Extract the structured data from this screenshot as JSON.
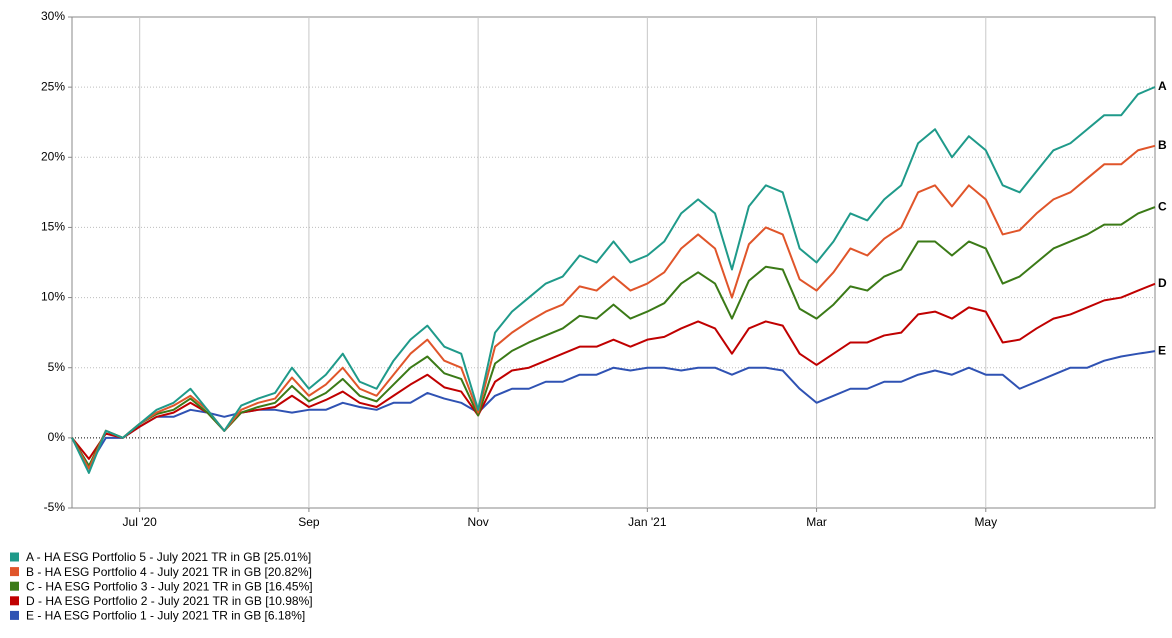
{
  "chart_data": {
    "type": "line",
    "categories": [
      null,
      null,
      null,
      null,
      "Jul '20",
      null,
      null,
      null,
      null,
      null,
      null,
      null,
      null,
      null,
      "Sep",
      null,
      null,
      null,
      null,
      null,
      null,
      null,
      null,
      null,
      "Nov",
      null,
      null,
      null,
      null,
      null,
      null,
      null,
      null,
      null,
      "Jan '21",
      null,
      null,
      null,
      null,
      null,
      null,
      null,
      null,
      null,
      "Mar",
      null,
      null,
      null,
      null,
      null,
      null,
      null,
      null,
      null,
      "May",
      null,
      null,
      null,
      null,
      null,
      null,
      null,
      null,
      null,
      null
    ],
    "ylim": [
      -5,
      30
    ],
    "yticks": [
      {
        "value": -5,
        "label": "-5%"
      },
      {
        "value": 0,
        "label": "0%"
      },
      {
        "value": 5,
        "label": "5%"
      },
      {
        "value": 10,
        "label": "10%"
      },
      {
        "value": 15,
        "label": "15%"
      },
      {
        "value": 20,
        "label": "20%"
      },
      {
        "value": 25,
        "label": "25%"
      },
      {
        "value": 30,
        "label": "30%"
      }
    ],
    "grid": true,
    "legend": "bottom-left",
    "series": [
      {
        "name": "A - HA ESG Portfolio 5 - July 2021 TR in GB [25.01%]",
        "end_label": "A",
        "color": "#1f9a8a",
        "values": [
          0,
          -2.5,
          0.5,
          0,
          1,
          2,
          2.5,
          3.5,
          2,
          0.5,
          2.3,
          2.8,
          3.2,
          5,
          3.5,
          4.5,
          6,
          4,
          3.5,
          5.5,
          7,
          8,
          6.5,
          6,
          2,
          7.5,
          9,
          10,
          11,
          11.5,
          13,
          12.5,
          14,
          12.5,
          13,
          14,
          16,
          17,
          16,
          12,
          16.5,
          18,
          17.5,
          13.5,
          12.5,
          14,
          16,
          15.5,
          17,
          18,
          21,
          22,
          20,
          21.5,
          20.5,
          18,
          17.5,
          19,
          20.5,
          21,
          22,
          23,
          23,
          24.5,
          25.01
        ]
      },
      {
        "name": "B - HA ESG Portfolio 4 - July 2021 TR in GB [20.82%]",
        "end_label": "B",
        "color": "#e0552a",
        "values": [
          0,
          -2.2,
          0.5,
          0,
          1,
          1.8,
          2.3,
          3,
          2,
          0.5,
          2,
          2.5,
          2.8,
          4.3,
          3,
          3.8,
          5,
          3.5,
          3,
          4.5,
          6,
          7,
          5.5,
          5,
          1.8,
          6.5,
          7.5,
          8.3,
          9,
          9.5,
          10.8,
          10.5,
          11.5,
          10.5,
          11,
          11.8,
          13.5,
          14.5,
          13.5,
          10,
          13.8,
          15,
          14.5,
          11.3,
          10.5,
          11.8,
          13.5,
          13,
          14.2,
          15,
          17.5,
          18,
          16.5,
          18,
          17,
          14.5,
          14.8,
          16,
          17,
          17.5,
          18.5,
          19.5,
          19.5,
          20.5,
          20.82
        ]
      },
      {
        "name": "C - HA ESG Portfolio 3 - July 2021 TR in GB [16.45%]",
        "end_label": "C",
        "color": "#3b7a17",
        "values": [
          0,
          -2,
          0.5,
          0,
          1,
          1.7,
          2,
          2.8,
          1.8,
          0.5,
          1.8,
          2.2,
          2.5,
          3.7,
          2.6,
          3.2,
          4.2,
          3,
          2.6,
          3.8,
          5,
          5.8,
          4.6,
          4.2,
          1.6,
          5.3,
          6.2,
          6.8,
          7.3,
          7.8,
          8.7,
          8.5,
          9.5,
          8.5,
          9,
          9.6,
          11,
          11.8,
          11,
          8.5,
          11.2,
          12.2,
          12,
          9.2,
          8.5,
          9.5,
          10.8,
          10.5,
          11.5,
          12,
          14,
          14,
          13,
          14,
          13.5,
          11,
          11.5,
          12.5,
          13.5,
          14,
          14.5,
          15.2,
          15.2,
          16,
          16.45
        ]
      },
      {
        "name": "D - HA ESG Portfolio 2 - July 2021 TR in GB [10.98%]",
        "end_label": "D",
        "color": "#c00000",
        "values": [
          0,
          -1.5,
          0.3,
          0,
          0.8,
          1.5,
          1.8,
          2.5,
          1.8,
          0.5,
          1.8,
          2,
          2.2,
          3,
          2.2,
          2.7,
          3.3,
          2.5,
          2.2,
          3,
          3.8,
          4.5,
          3.6,
          3.3,
          1.6,
          4,
          4.8,
          5,
          5.5,
          6,
          6.5,
          6.5,
          7,
          6.5,
          7,
          7.2,
          7.8,
          8.3,
          7.8,
          6,
          7.8,
          8.3,
          8,
          6,
          5.2,
          6,
          6.8,
          6.8,
          7.3,
          7.5,
          8.8,
          9,
          8.5,
          9.3,
          9,
          6.8,
          7,
          7.8,
          8.5,
          8.8,
          9.3,
          9.8,
          10,
          10.5,
          10.98
        ]
      },
      {
        "name": "E - HA ESG Portfolio 1 - July 2021 TR in GB [6.18%]",
        "end_label": "E",
        "color": "#2f52b3",
        "values": [
          0,
          -2,
          0,
          0,
          0.8,
          1.5,
          1.5,
          2,
          1.8,
          1.5,
          1.8,
          2,
          2,
          1.8,
          2,
          2,
          2.5,
          2.2,
          2,
          2.5,
          2.5,
          3.2,
          2.8,
          2.5,
          1.8,
          3,
          3.5,
          3.5,
          4,
          4,
          4.5,
          4.5,
          5,
          4.8,
          5,
          5,
          4.8,
          5,
          5,
          4.5,
          5,
          5,
          4.8,
          3.5,
          2.5,
          3,
          3.5,
          3.5,
          4,
          4,
          4.5,
          4.8,
          4.5,
          5,
          4.5,
          4.5,
          3.5,
          4,
          4.5,
          5,
          5,
          5.5,
          5.8,
          6,
          6.18
        ]
      }
    ]
  }
}
